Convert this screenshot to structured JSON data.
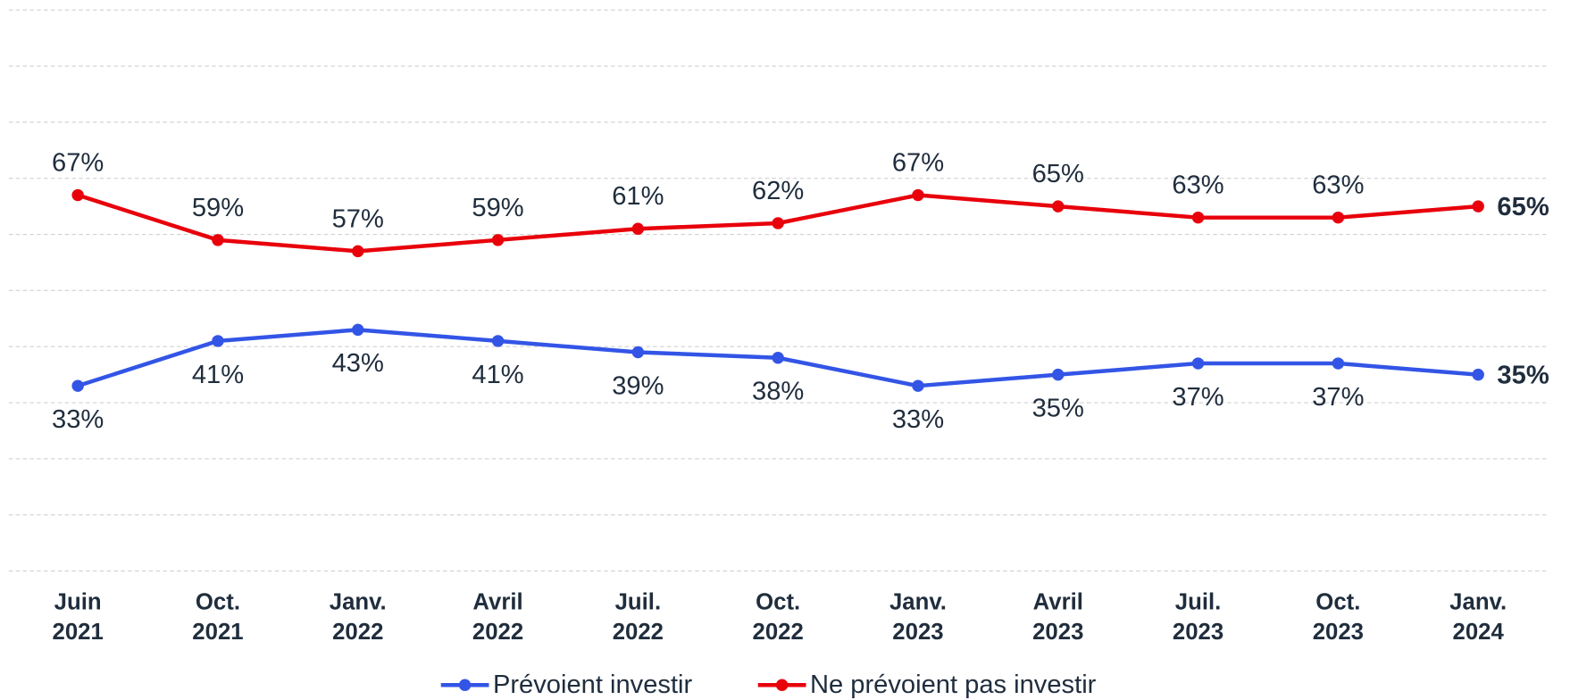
{
  "chart_data": {
    "type": "line",
    "categories": [
      "Juin\n2021",
      "Oct.\n2021",
      "Janv.\n2022",
      "Avril\n2022",
      "Juil.\n2022",
      "Oct.\n2022",
      "Janv.\n2023",
      "Avril\n2023",
      "Juil.\n2023",
      "Oct.\n2023",
      "Janv.\n2024"
    ],
    "series": [
      {
        "name": "Prévoient investir",
        "color": "#3355e6",
        "values": [
          33,
          41,
          43,
          41,
          39,
          38,
          33,
          35,
          37,
          37,
          35
        ],
        "value_labels": [
          "33%",
          "41%",
          "43%",
          "41%",
          "39%",
          "38%",
          "33%",
          "35%",
          "37%",
          "37%",
          "35%"
        ]
      },
      {
        "name": "Ne prévoient pas investir",
        "color": "#e8000b",
        "values": [
          67,
          59,
          57,
          59,
          61,
          62,
          67,
          65,
          63,
          63,
          65
        ],
        "value_labels": [
          "67%",
          "59%",
          "57%",
          "59%",
          "61%",
          "62%",
          "67%",
          "65%",
          "63%",
          "63%",
          "65%"
        ]
      }
    ],
    "ylim": [
      0,
      100
    ],
    "yticks": [
      0,
      10,
      20,
      30,
      40,
      50,
      60,
      70,
      80,
      90,
      100
    ],
    "grid": true,
    "legend": "bottom"
  }
}
